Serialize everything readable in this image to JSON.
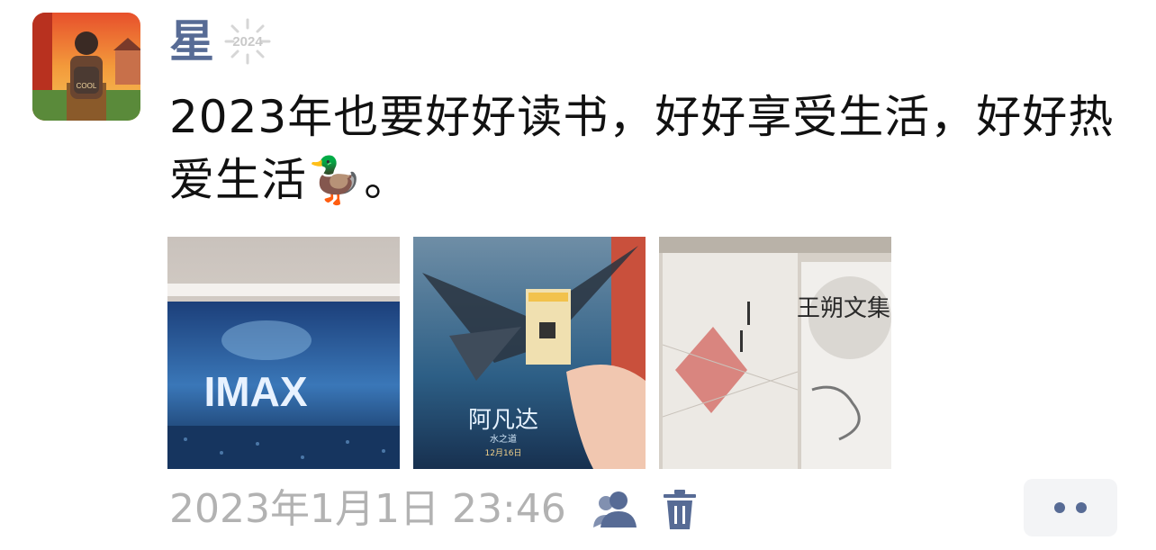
{
  "post": {
    "username": "星",
    "badge_year": "2024",
    "text": "2023年也要好好读书，好好享受生活，好好热爱生活🦆。",
    "timestamp": "2023年1月1日 23:46",
    "avatar_text": "COOL",
    "photos": [
      {
        "icon": "imax-theater-photo",
        "caption": "IMAX"
      },
      {
        "icon": "avatar-movie-poster-photo",
        "caption": "阿凡达",
        "subcaption": "水之道",
        "date": "12月16日"
      },
      {
        "icon": "books-photo",
        "caption": "王朔文集"
      }
    ]
  },
  "icons": {
    "friends": "friends-visibility-icon",
    "trash": "trash-icon",
    "more": "more-dots-icon"
  },
  "colors": {
    "username": "#576b95",
    "timestamp": "#b2b2b2",
    "icon": "#576b95",
    "more_bg": "#f3f4f6"
  }
}
